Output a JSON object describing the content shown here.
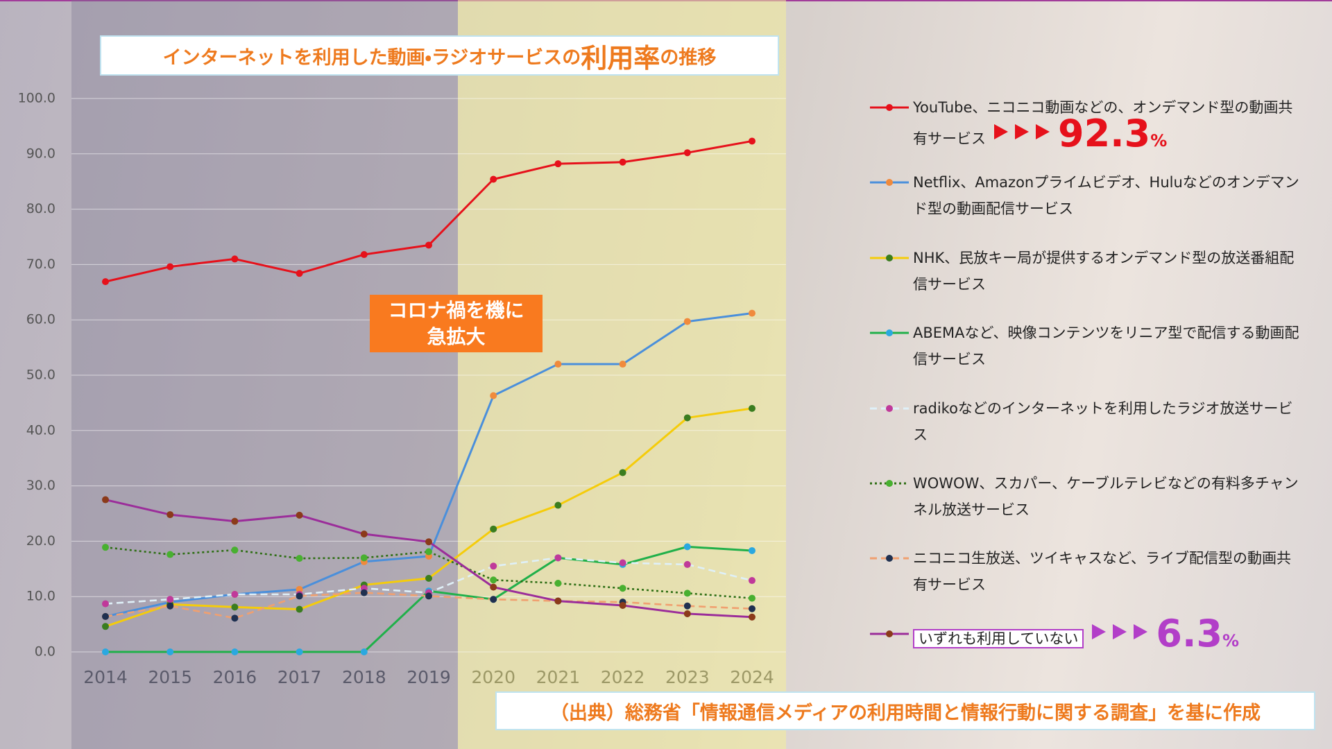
{
  "chart_data": {
    "type": "line",
    "title_parts": [
      "インターネットを利用した動画・ラジオサービスの",
      "利用率",
      "の推移"
    ],
    "annotation_lines": [
      "コロナ禍を機に",
      "急拡大"
    ],
    "source": "（出典）総務省「情報通信メディアの利用時間と情報行動に関する調査」を基に作成",
    "categories": [
      "2014",
      "2015",
      "2016",
      "2017",
      "2018",
      "2019",
      "2020",
      "2021",
      "2022",
      "2023",
      "2024"
    ],
    "ylim": [
      0,
      100
    ],
    "yticks": [
      {
        "value": 0,
        "label": "0.0"
      },
      {
        "value": 10,
        "label": "10.0"
      },
      {
        "value": 20,
        "label": "20.0"
      },
      {
        "value": 30,
        "label": "30.0"
      },
      {
        "value": 40,
        "label": "40.0"
      },
      {
        "value": 50,
        "label": "50.0"
      },
      {
        "value": 60,
        "label": "60.0"
      },
      {
        "value": 70,
        "label": "70.0"
      },
      {
        "value": 80,
        "label": "80.0"
      },
      {
        "value": 90,
        "label": "90.0"
      },
      {
        "value": 100,
        "label": "100.0"
      }
    ],
    "grid": true,
    "legend": "right",
    "series": [
      {
        "name": "YouTube、ニコニコ動画などの、オンデマンド型の動画共有サービス",
        "color": "#e6111b",
        "marker_color": "#e6111b",
        "dash": "solid",
        "values": [
          66.9,
          69.6,
          71.0,
          68.4,
          71.8,
          73.5,
          85.4,
          88.2,
          88.5,
          90.2,
          92.3
        ],
        "highlight": {
          "value": 92.3,
          "unit": "%",
          "color": "#e6111b"
        }
      },
      {
        "name": "Netflix、Amazonプライムビデオ、Huluなどのオンデマンド型の動画配信サービス",
        "color": "#4a8fdb",
        "marker_color": "#f08a3c",
        "dash": "solid",
        "values": [
          6.4,
          9.0,
          10.4,
          11.3,
          16.3,
          17.3,
          46.3,
          52.0,
          52.0,
          59.7,
          61.2
        ]
      },
      {
        "name": "NHK、民放キー局が提供するオンデマンド型の放送番組配信サービス",
        "color": "#f5cc0a",
        "marker_color": "#3a7d1f",
        "dash": "solid",
        "values": [
          4.6,
          8.6,
          8.1,
          7.7,
          12.1,
          13.3,
          22.2,
          26.5,
          32.4,
          42.3,
          44.0
        ]
      },
      {
        "name": "ABEMAなど、映像コンテンツをリニア型で配信する動画配信サービス",
        "color": "#20b04a",
        "marker_color": "#2aa8e0",
        "dash": "solid",
        "values": [
          0,
          0,
          0,
          0,
          0,
          11.0,
          9.5,
          17.0,
          15.8,
          19.0,
          18.3
        ]
      },
      {
        "name": "radikoなどのインターネットを利用したラジオ放送サービス",
        "color": "#dff0f8",
        "marker_color": "#c0399a",
        "dash": "dashed",
        "values": [
          8.7,
          9.5,
          10.4,
          10.4,
          11.5,
          10.7,
          15.5,
          17.0,
          16.1,
          15.8,
          12.9
        ]
      },
      {
        "name": "WOWOW、スカパー、ケーブルテレビなどの有料多チャンネル放送サービス",
        "color": "#2e6e14",
        "marker_color": "#48b030",
        "dash": "dotted",
        "values": [
          18.9,
          17.6,
          18.4,
          16.9,
          17.0,
          18.1,
          13.0,
          12.4,
          11.5,
          10.6,
          9.7
        ]
      },
      {
        "name": "ニコニコ生放送、ツイキャスなど、ライブ配信型の動画共有サービス",
        "color": "#f0a070",
        "marker_color": "#1f3050",
        "dash": "dashed",
        "values": [
          6.4,
          8.3,
          6.1,
          10.1,
          10.7,
          10.1,
          9.5,
          9.2,
          9.0,
          8.3,
          7.8
        ]
      },
      {
        "name": "いずれも利用していない",
        "color": "#9b2d9a",
        "marker_color": "#8b3a1a",
        "dash": "solid",
        "boxed": true,
        "values": [
          27.5,
          24.8,
          23.6,
          24.7,
          21.3,
          19.9,
          11.7,
          9.2,
          8.4,
          6.9,
          6.3
        ],
        "highlight": {
          "value": 6.3,
          "unit": "%",
          "color": "#b23ec8"
        }
      }
    ]
  }
}
